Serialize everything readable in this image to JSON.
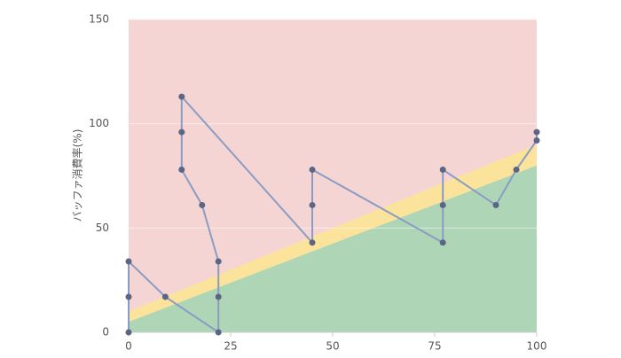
{
  "chart_data": {
    "type": "line",
    "y_label": "バッファ消費率(%)",
    "xlim": [
      0,
      100
    ],
    "ylim": [
      0,
      150
    ],
    "xticks": [
      0,
      25,
      50,
      75,
      100
    ],
    "yticks": [
      0,
      50,
      100,
      150
    ],
    "grid": true,
    "background": "#f5d5d4",
    "zones": [
      {
        "color": "#fbe39c",
        "x": [
          0,
          100
        ],
        "values": [
          10,
          90
        ]
      },
      {
        "color": "#aed6b6",
        "x": [
          0,
          100
        ],
        "values": [
          5,
          80
        ]
      }
    ],
    "series": [
      {
        "color": "#8a9cc3",
        "marker_color": "#5c6583",
        "x": [
          0,
          0,
          0,
          9,
          22,
          22,
          22,
          18,
          13,
          13,
          13,
          45,
          45,
          45,
          77,
          77,
          77,
          90,
          95,
          100,
          100
        ],
        "values": [
          0,
          17,
          34,
          17,
          0,
          17,
          34,
          61,
          78,
          96,
          113,
          43,
          61,
          78,
          43,
          61,
          78,
          61,
          78,
          92,
          96
        ]
      }
    ]
  }
}
